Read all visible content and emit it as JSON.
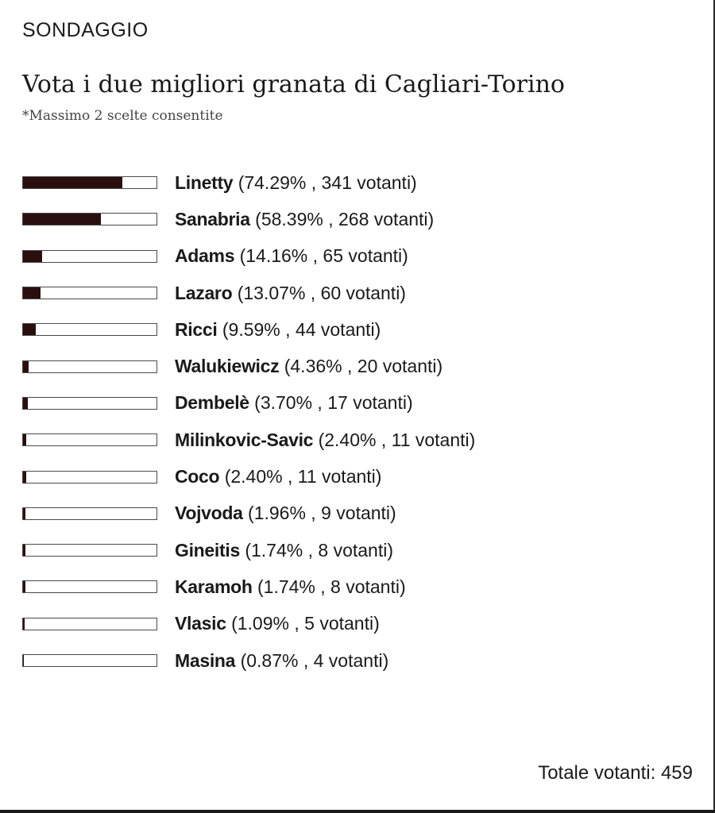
{
  "poll": {
    "section_label": "SONDAGGIO",
    "title": "Vota i due migliori granata di Cagliari-Torino",
    "subtitle": "*Massimo 2 scelte consentite",
    "total_text": "Totale votanti: 459",
    "colors": {
      "bar_fill": "#2b0f0f",
      "bar_border": "#4a4a4a"
    },
    "options": [
      {
        "name": "Linetty",
        "detail": "(74.29% , 341 votanti)",
        "percent": 74.29,
        "votes": 341
      },
      {
        "name": "Sanabria",
        "detail": "(58.39% , 268 votanti)",
        "percent": 58.39,
        "votes": 268
      },
      {
        "name": "Adams",
        "detail": "(14.16% , 65 votanti)",
        "percent": 14.16,
        "votes": 65
      },
      {
        "name": "Lazaro",
        "detail": "(13.07% , 60 votanti)",
        "percent": 13.07,
        "votes": 60
      },
      {
        "name": "Ricci",
        "detail": "(9.59% , 44 votanti)",
        "percent": 9.59,
        "votes": 44
      },
      {
        "name": "Walukiewicz",
        "detail": "(4.36% , 20 votanti)",
        "percent": 4.36,
        "votes": 20
      },
      {
        "name": "Dembelè",
        "detail": "(3.70% , 17 votanti)",
        "percent": 3.7,
        "votes": 17
      },
      {
        "name": "Milinkovic-Savic",
        "detail": "(2.40% , 11 votanti)",
        "percent": 2.4,
        "votes": 11
      },
      {
        "name": "Coco",
        "detail": "(2.40% , 11 votanti)",
        "percent": 2.4,
        "votes": 11
      },
      {
        "name": "Vojvoda",
        "detail": "(1.96% , 9 votanti)",
        "percent": 1.96,
        "votes": 9
      },
      {
        "name": "Gineitis",
        "detail": "(1.74% , 8 votanti)",
        "percent": 1.74,
        "votes": 8
      },
      {
        "name": "Karamoh",
        "detail": "(1.74% , 8 votanti)",
        "percent": 1.74,
        "votes": 8
      },
      {
        "name": "Vlasic",
        "detail": "(1.09% , 5 votanti)",
        "percent": 1.09,
        "votes": 5
      },
      {
        "name": "Masina",
        "detail": "(0.87% , 4 votanti)",
        "percent": 0.87,
        "votes": 4
      }
    ]
  }
}
